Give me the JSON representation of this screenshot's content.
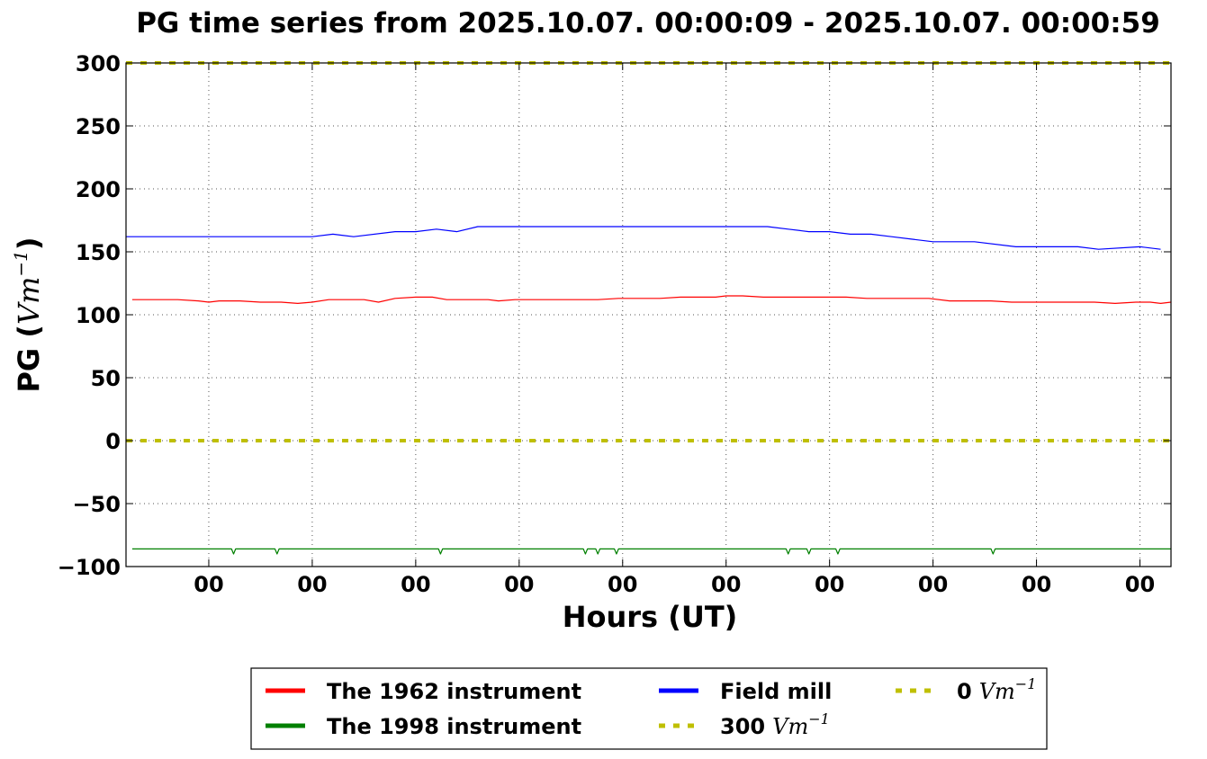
{
  "chart_data": {
    "type": "line",
    "title": "PG time series from 2025.10.07. 00:00:09 - 2025.10.07. 00:00:59",
    "xlabel": "Hours (UT)",
    "ylabel_text": "PG (",
    "ylabel_unit_base": "Vm",
    "ylabel_unit_exp": "−1",
    "ylabel_close": ")",
    "ylim": [
      -100,
      300
    ],
    "yticks": [
      300,
      250,
      200,
      150,
      100,
      50,
      0,
      -50,
      -100
    ],
    "ytick_labels": [
      "300",
      "250",
      "200",
      "150",
      "100",
      "50",
      "0",
      "−50",
      "−100"
    ],
    "xlim": [
      9,
      59.5
    ],
    "xticks": [
      13,
      18,
      23,
      28,
      33,
      38,
      43,
      48,
      53,
      58
    ],
    "xtick_labels": [
      "00",
      "00",
      "00",
      "00",
      "00",
      "00",
      "00",
      "00",
      "00",
      "00"
    ],
    "grid": true,
    "legend_placement": "bottom-center",
    "series": [
      {
        "name": "The 1962 instrument",
        "color": "#ff0000",
        "style": "solid",
        "x": [
          9.3,
          10.5,
          11.5,
          12.5,
          13.0,
          13.5,
          14.5,
          15.5,
          16.5,
          17.3,
          18.0,
          18.8,
          19.8,
          20.5,
          21.2,
          22.0,
          23.0,
          23.8,
          24.5,
          25.5,
          26.5,
          27.0,
          27.8,
          28.7,
          29.8,
          30.8,
          31.8,
          32.8,
          33.8,
          34.8,
          35.8,
          36.5,
          37.5,
          38.0,
          38.8,
          39.8,
          40.8,
          41.8,
          42.8,
          43.8,
          44.8,
          45.8,
          46.8,
          47.8,
          48.8,
          49.8,
          50.8,
          51.8,
          52.8,
          53.8,
          54.8,
          55.8,
          56.8,
          57.8,
          58.5,
          59.0,
          59.5
        ],
        "y": [
          112,
          112,
          112,
          111,
          110,
          111,
          111,
          110,
          110,
          109,
          110,
          112,
          112,
          112,
          110,
          113,
          114,
          114,
          112,
          112,
          112,
          111,
          112,
          112,
          112,
          112,
          112,
          113,
          113,
          113,
          114,
          114,
          114,
          115,
          115,
          114,
          114,
          114,
          114,
          114,
          113,
          113,
          113,
          113,
          111,
          111,
          111,
          110,
          110,
          110,
          110,
          110,
          109,
          110,
          110,
          109,
          110
        ]
      },
      {
        "name": "The 1998 instrument",
        "color": "#008000",
        "style": "solid",
        "x": [
          9.3,
          14.1,
          14.2,
          14.3,
          16.2,
          16.3,
          16.4,
          24.1,
          24.2,
          24.3,
          31.1,
          31.2,
          31.3,
          31.7,
          31.8,
          31.9,
          32.6,
          32.7,
          32.8,
          40.9,
          41.0,
          41.1,
          41.9,
          42.0,
          42.1,
          43.3,
          43.4,
          43.5,
          50.8,
          50.9,
          51.0,
          59.5
        ],
        "y": [
          -86,
          -86,
          -90,
          -86,
          -86,
          -90,
          -86,
          -86,
          -90,
          -86,
          -86,
          -90,
          -86,
          -86,
          -90,
          -86,
          -86,
          -90,
          -86,
          -86,
          -90,
          -86,
          -86,
          -90,
          -86,
          -86,
          -90,
          -86,
          -86,
          -90,
          -86,
          -86
        ]
      },
      {
        "name": "Field mill",
        "color": "#0000ff",
        "style": "solid",
        "x": [
          9.0,
          18.0,
          19.0,
          20.0,
          22.0,
          23.0,
          24.0,
          25.0,
          26.0,
          27.0,
          29.0,
          31.0,
          33.0,
          35.0,
          37.0,
          38.0,
          39.0,
          40.0,
          41.0,
          42.0,
          43.0,
          44.0,
          45.0,
          46.0,
          47.0,
          48.0,
          50.0,
          52.0,
          53.0,
          54.0,
          55.0,
          56.0,
          58.0,
          59.0
        ],
        "y": [
          162,
          162,
          164,
          162,
          166,
          166,
          168,
          166,
          170,
          170,
          170,
          170,
          170,
          170,
          170,
          170,
          170,
          170,
          168,
          166,
          166,
          164,
          164,
          162,
          160,
          158,
          158,
          154,
          154,
          154,
          154,
          152,
          154,
          152
        ]
      },
      {
        "name": "300 Vm⁻¹",
        "color": "#bfbf00",
        "style": "dotted",
        "x": [
          9,
          59.5
        ],
        "y": [
          300,
          300
        ]
      },
      {
        "name": "0 Vm⁻¹",
        "color": "#bfbf00",
        "style": "dotted",
        "x": [
          9,
          59.5
        ],
        "y": [
          0,
          0
        ]
      }
    ],
    "legend": [
      {
        "label_bold": "The 1962 instrument",
        "label_math": "",
        "color": "#ff0000",
        "style": "solid"
      },
      {
        "label_bold": "The 1998 instrument",
        "label_math": "",
        "color": "#008000",
        "style": "solid"
      },
      {
        "label_bold": "Field mill",
        "label_math": "",
        "color": "#0000ff",
        "style": "solid"
      },
      {
        "label_bold": "300",
        "label_math": "Vm",
        "label_exp": "−1",
        "color": "#bfbf00",
        "style": "dotted"
      },
      {
        "label_bold": "0",
        "label_math": "Vm",
        "label_exp": "−1",
        "color": "#bfbf00",
        "style": "dotted"
      }
    ]
  }
}
